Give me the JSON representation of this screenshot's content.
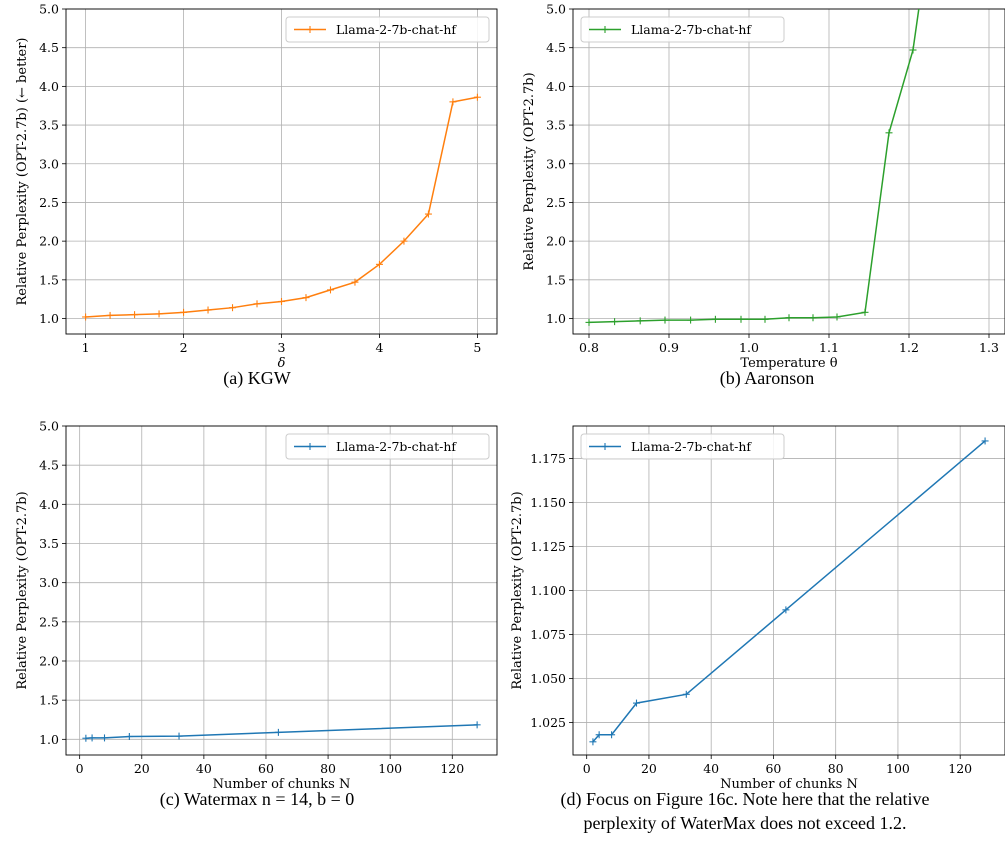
{
  "chart_data": [
    {
      "type": "line",
      "caption": "(a) KGW",
      "xlabel": "δ",
      "ylabel": "Relative Perplexity (OPT-2.7b) (← better)",
      "xlim": [
        0.8,
        5.2
      ],
      "ylim": [
        0.8,
        5.0
      ],
      "xticks": [
        1,
        2,
        3,
        4,
        5
      ],
      "yticks": [
        1.0,
        1.5,
        2.0,
        2.5,
        3.0,
        3.5,
        4.0,
        4.5,
        5.0
      ],
      "grid": true,
      "legend_position": "top-right",
      "series": [
        {
          "name": "Llama-2-7b-chat-hf",
          "color": "#ff7f0e",
          "x": [
            1.0,
            1.25,
            1.5,
            1.75,
            2.0,
            2.25,
            2.5,
            2.75,
            3.0,
            3.25,
            3.5,
            3.75,
            4.0,
            4.25,
            4.5,
            4.75,
            5.0
          ],
          "y": [
            1.02,
            1.04,
            1.05,
            1.06,
            1.08,
            1.11,
            1.14,
            1.19,
            1.22,
            1.27,
            1.37,
            1.47,
            1.7,
            2.0,
            2.35,
            3.8,
            3.86
          ]
        }
      ]
    },
    {
      "type": "line",
      "caption": "(b) Aaronson",
      "xlabel": "Temperature θ",
      "ylabel": "Relative Perplexity (OPT-2.7b)",
      "xlim": [
        0.78,
        1.32
      ],
      "ylim": [
        0.8,
        5.0
      ],
      "xticks": [
        0.8,
        0.9,
        1.0,
        1.1,
        1.2,
        1.3
      ],
      "yticks": [
        1.0,
        1.5,
        2.0,
        2.5,
        3.0,
        3.5,
        4.0,
        4.5,
        5.0
      ],
      "grid": true,
      "legend_position": "top-left",
      "series": [
        {
          "name": "Llama-2-7b-chat-hf",
          "color": "#2ca02c",
          "x": [
            0.8,
            0.832,
            0.864,
            0.895,
            0.927,
            0.958,
            0.99,
            1.02,
            1.05,
            1.08,
            1.11,
            1.145,
            1.175,
            1.205,
            1.215
          ],
          "y": [
            0.95,
            0.96,
            0.97,
            0.98,
            0.98,
            0.99,
            0.99,
            0.99,
            1.01,
            1.01,
            1.02,
            1.08,
            3.4,
            4.47,
            5.2
          ]
        }
      ]
    },
    {
      "type": "line",
      "caption": "(c) Watermax n = 14, b = 0",
      "xlabel": "Number of chunks N",
      "ylabel": "Relative Perplexity (OPT-2.7b)",
      "xlim": [
        -4.4,
        134.4
      ],
      "ylim": [
        0.8,
        5.0
      ],
      "xticks": [
        0,
        20,
        40,
        60,
        80,
        100,
        120
      ],
      "yticks": [
        1.0,
        1.5,
        2.0,
        2.5,
        3.0,
        3.5,
        4.0,
        4.5,
        5.0
      ],
      "grid": true,
      "legend_position": "top-right",
      "series": [
        {
          "name": "Llama-2-7b-chat-hf",
          "color": "#1f77b4",
          "x": [
            2,
            4,
            8,
            16,
            32,
            64,
            128
          ],
          "y": [
            1.014,
            1.018,
            1.018,
            1.036,
            1.041,
            1.089,
            1.185
          ]
        }
      ]
    },
    {
      "type": "line",
      "caption": "(d) Focus on Figure 16c. Note here that the relative perplexity of WaterMax does not exceed 1.2.",
      "caption_lines": [
        "(d) Focus on Figure 16c. Note here that the relative",
        "perplexity of WaterMax does not exceed 1.2."
      ],
      "xlabel": "Number of chunks N",
      "ylabel": "Relative Perplexity (OPT-2.7b)",
      "xlim": [
        -4.4,
        134.4
      ],
      "ylim": [
        1.0065,
        1.1935
      ],
      "xticks": [
        0,
        20,
        40,
        60,
        80,
        100,
        120
      ],
      "yticks": [
        1.025,
        1.05,
        1.075,
        1.1,
        1.125,
        1.15,
        1.175
      ],
      "grid": true,
      "legend_position": "top-left",
      "series": [
        {
          "name": "Llama-2-7b-chat-hf",
          "color": "#1f77b4",
          "x": [
            2,
            4,
            8,
            16,
            32,
            64,
            128
          ],
          "y": [
            1.014,
            1.018,
            1.018,
            1.036,
            1.041,
            1.089,
            1.185
          ]
        }
      ]
    }
  ]
}
